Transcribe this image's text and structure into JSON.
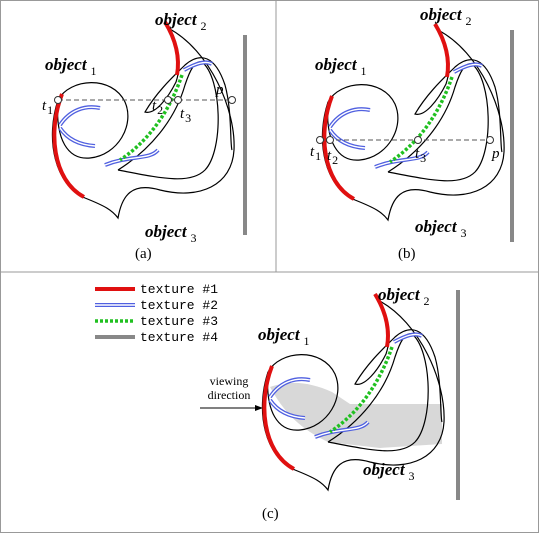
{
  "panels": [
    {
      "label": "(a)",
      "objects": [
        {
          "name": "object",
          "index": "1"
        },
        {
          "name": "object",
          "index": "2"
        },
        {
          "name": "object",
          "index": "3"
        }
      ],
      "points": [
        {
          "name": "t",
          "index": "1"
        },
        {
          "name": "t",
          "index": "2"
        },
        {
          "name": "t",
          "index": "3"
        },
        {
          "name": "p"
        }
      ]
    },
    {
      "label": "(b)",
      "objects": [
        {
          "name": "object",
          "index": "1"
        },
        {
          "name": "object",
          "index": "2"
        },
        {
          "name": "object",
          "index": "3"
        }
      ],
      "points": [
        {
          "name": "t",
          "index": "1"
        },
        {
          "name": "t",
          "index": "2"
        },
        {
          "name": "t",
          "index": "3"
        },
        {
          "name": "p"
        }
      ]
    },
    {
      "label": "(c)",
      "objects": [
        {
          "name": "object",
          "index": "1"
        },
        {
          "name": "object",
          "index": "2"
        },
        {
          "name": "object",
          "index": "3"
        }
      ],
      "legend": [
        "texture #1",
        "texture #2",
        "texture #3",
        "texture #4"
      ],
      "annotation": [
        "viewing",
        "direction"
      ]
    }
  ]
}
